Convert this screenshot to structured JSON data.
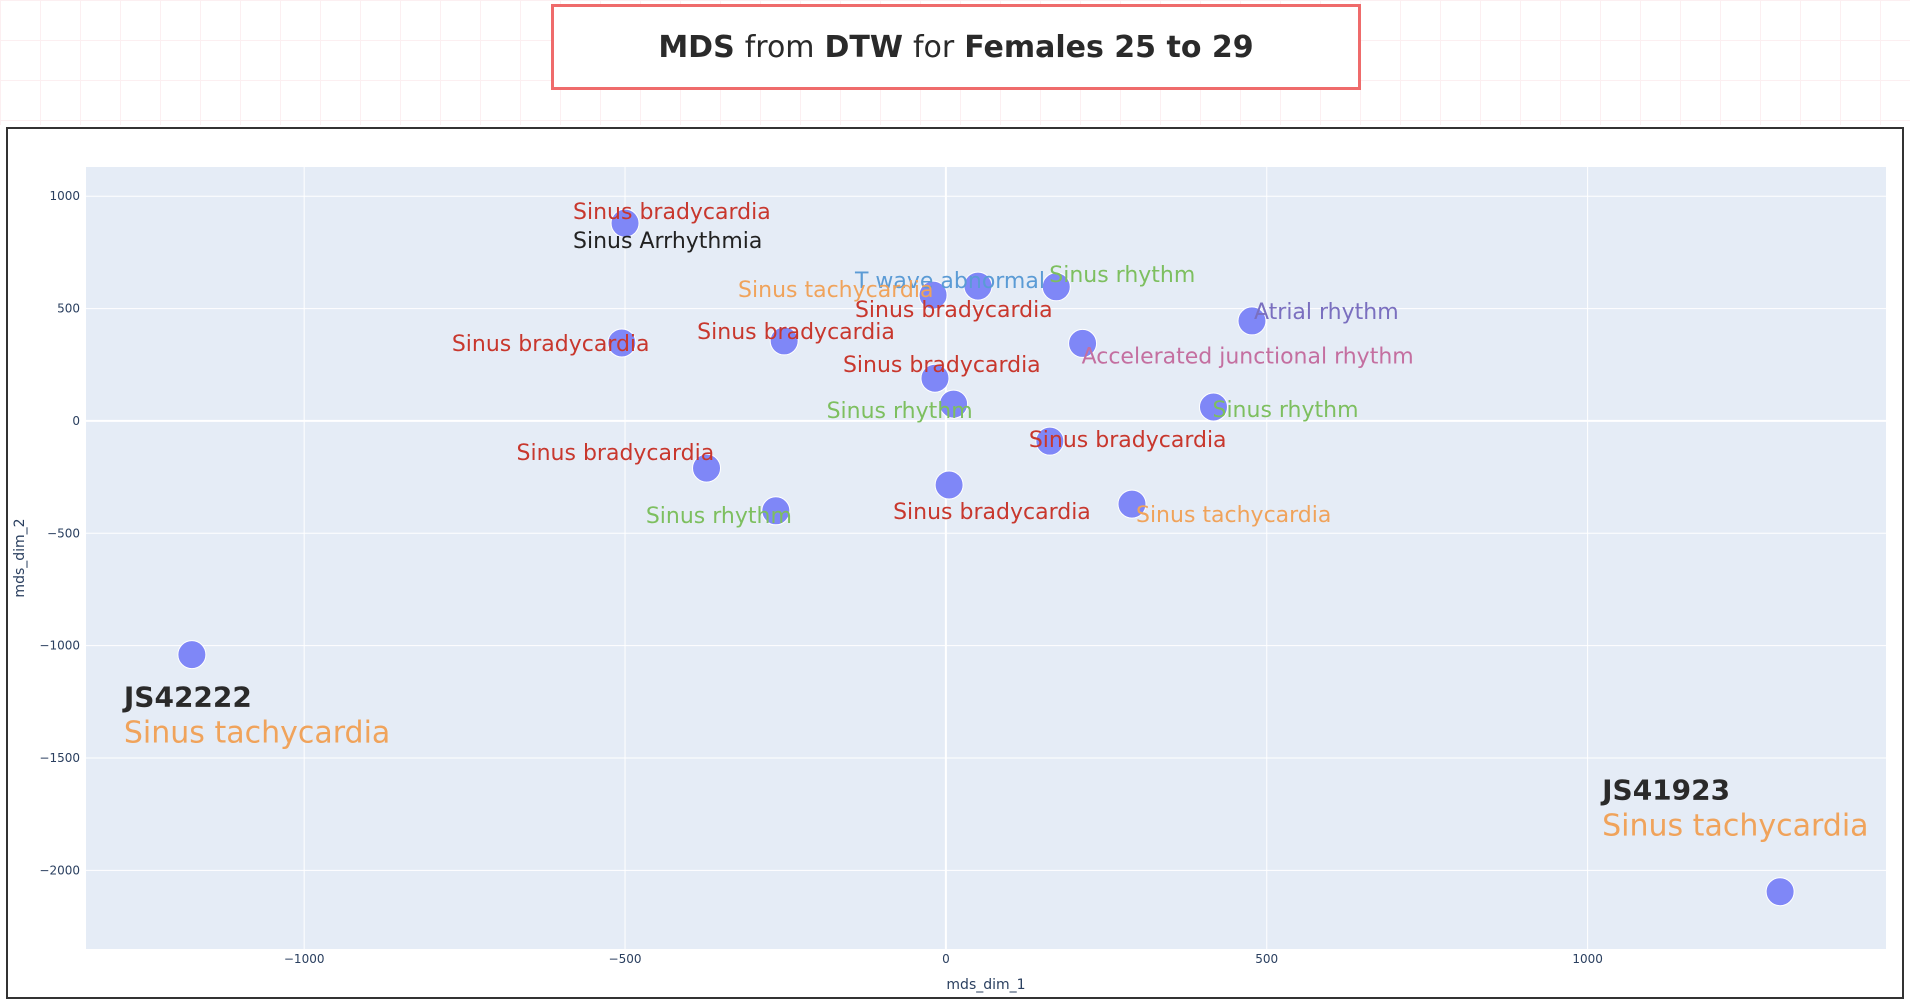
{
  "title": {
    "parts": [
      {
        "text": "MDS",
        "bold": true
      },
      {
        "text": "from",
        "bold": false
      },
      {
        "text": "DTW",
        "bold": true
      },
      {
        "text": "for",
        "bold": false
      },
      {
        "text": "Females 25 to 29",
        "bold": true
      }
    ]
  },
  "colors": {
    "marker": "#7f87f7",
    "plot_bg": "#e5ecf6",
    "grid": "#ffffff",
    "title_border": "#ef6b6b",
    "sinus_bradycardia": "#c8372d",
    "sinus_arrhythmia": "#222222",
    "t_wave_abnormal": "#5b9bd5",
    "sinus_rhythm": "#7dbf5f",
    "sinus_tachycardia": "#f0a35b",
    "atrial_rhythm": "#7a6fbf",
    "accelerated_junctional_rhythm": "#c46fa0"
  },
  "chart_data": {
    "type": "scatter",
    "xlabel": "mds_dim_1",
    "ylabel": "mds_dim_2",
    "xlim": [
      -1340,
      1465
    ],
    "ylim": [
      -2350,
      1130
    ],
    "xticks": [
      -1000,
      -500,
      0,
      500,
      1000
    ],
    "yticks": [
      -2000,
      -1500,
      -1000,
      -500,
      0,
      500,
      1000
    ],
    "grid": true,
    "points": [
      {
        "x": -500,
        "y": 880,
        "labels": [
          {
            "text": "Sinus bradycardia",
            "color": "sinus_bradycardia"
          },
          {
            "text": "Sinus Arrhythmia",
            "color": "sinus_arrhythmia"
          }
        ]
      },
      {
        "x": 50,
        "y": 600,
        "labels": [
          {
            "text": "T wave abnormal",
            "color": "t_wave_abnormal"
          },
          {
            "text": "Sinus bradycardia",
            "color": "sinus_bradycardia"
          }
        ]
      },
      {
        "x": 172,
        "y": 597,
        "labels": [
          {
            "text": "Sinus rhythm",
            "color": "sinus_rhythm"
          }
        ]
      },
      {
        "x": -20,
        "y": 560,
        "labels": [
          {
            "text": "Sinus tachycardia",
            "color": "sinus_tachycardia"
          }
        ]
      },
      {
        "x": 477,
        "y": 445,
        "labels": [
          {
            "text": "Atrial rhythm",
            "color": "atrial_rhythm"
          }
        ]
      },
      {
        "x": -505,
        "y": 347,
        "labels": [
          {
            "text": "Sinus bradycardia",
            "color": "sinus_bradycardia"
          }
        ]
      },
      {
        "x": -252,
        "y": 356,
        "labels": [
          {
            "text": "Sinus bradycardia",
            "color": "sinus_bradycardia"
          }
        ]
      },
      {
        "x": 213,
        "y": 345,
        "labels": [
          {
            "text": "Accelerated junctional rhythm",
            "color": "accelerated_junctional_rhythm"
          }
        ]
      },
      {
        "x": -17,
        "y": 190,
        "labels": [
          {
            "text": "Sinus bradycardia",
            "color": "sinus_bradycardia"
          }
        ]
      },
      {
        "x": 12,
        "y": 75,
        "labels": [
          {
            "text": "Sinus rhythm",
            "color": "sinus_rhythm"
          }
        ]
      },
      {
        "x": 417,
        "y": 62,
        "labels": [
          {
            "text": "Sinus rhythm",
            "color": "sinus_rhythm"
          }
        ]
      },
      {
        "x": 162,
        "y": -90,
        "labels": [
          {
            "text": "Sinus bradycardia",
            "color": "sinus_bradycardia"
          }
        ]
      },
      {
        "x": -373,
        "y": -210,
        "labels": [
          {
            "text": "Sinus bradycardia",
            "color": "sinus_bradycardia"
          }
        ]
      },
      {
        "x": 5,
        "y": -285,
        "labels": [
          {
            "text": "Sinus bradycardia",
            "color": "sinus_bradycardia"
          }
        ]
      },
      {
        "x": 290,
        "y": -370,
        "labels": [
          {
            "text": "Sinus tachycardia",
            "color": "sinus_tachycardia"
          }
        ]
      },
      {
        "x": -265,
        "y": -400,
        "labels": [
          {
            "text": "Sinus rhythm",
            "color": "sinus_rhythm"
          }
        ]
      },
      {
        "x": -1175,
        "y": -1040,
        "id_label": "JS42222",
        "labels": [
          {
            "text": "Sinus tachycardia",
            "color": "sinus_tachycardia"
          }
        ]
      },
      {
        "x": 1300,
        "y": -2095,
        "id_label": "JS41923",
        "labels": [
          {
            "text": "Sinus tachycardia",
            "color": "sinus_tachycardia"
          }
        ]
      }
    ]
  }
}
